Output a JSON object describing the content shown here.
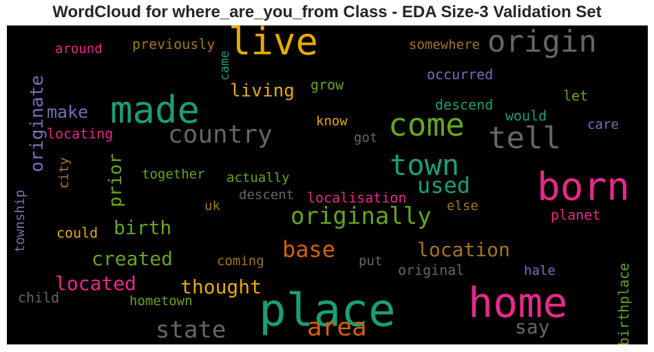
{
  "chart_data": {
    "type": "wordcloud",
    "title": "WordCloud for where_are_you_from Class - EDA Size-3 Validation Set",
    "background": "#000000",
    "palette": {
      "green": "#1b9e77",
      "orange": "#d95f02",
      "purple": "#7570b3",
      "pink": "#e7298a",
      "lime": "#66a61e",
      "gold": "#e6ab02",
      "brown": "#a6761d",
      "gray": "#666666"
    },
    "words": [
      {
        "text": "live",
        "color": "gold"
      },
      {
        "text": "origin",
        "color": "gray"
      },
      {
        "text": "previously",
        "color": "brown"
      },
      {
        "text": "somewhere",
        "color": "brown"
      },
      {
        "text": "around",
        "color": "pink"
      },
      {
        "text": "came",
        "color": "green"
      },
      {
        "text": "made",
        "color": "green"
      },
      {
        "text": "originate",
        "color": "purple"
      },
      {
        "text": "occurred",
        "color": "purple"
      },
      {
        "text": "living",
        "color": "gold"
      },
      {
        "text": "grow",
        "color": "lime"
      },
      {
        "text": "let",
        "color": "lime"
      },
      {
        "text": "make",
        "color": "purple"
      },
      {
        "text": "descend",
        "color": "green"
      },
      {
        "text": "would",
        "color": "green"
      },
      {
        "text": "come",
        "color": "lime"
      },
      {
        "text": "care",
        "color": "purple"
      },
      {
        "text": "know",
        "color": "gold"
      },
      {
        "text": "locating",
        "color": "pink"
      },
      {
        "text": "country",
        "color": "gray"
      },
      {
        "text": "tell",
        "color": "gray"
      },
      {
        "text": "got",
        "color": "gray"
      },
      {
        "text": "town",
        "color": "green"
      },
      {
        "text": "prior",
        "color": "lime"
      },
      {
        "text": "city",
        "color": "brown"
      },
      {
        "text": "born",
        "color": "pink"
      },
      {
        "text": "together",
        "color": "lime"
      },
      {
        "text": "actually",
        "color": "lime"
      },
      {
        "text": "used",
        "color": "green"
      },
      {
        "text": "township",
        "color": "purple"
      },
      {
        "text": "descent",
        "color": "gray"
      },
      {
        "text": "localisation",
        "color": "pink"
      },
      {
        "text": "uk",
        "color": "brown"
      },
      {
        "text": "else",
        "color": "brown"
      },
      {
        "text": "originally",
        "color": "lime"
      },
      {
        "text": "planet",
        "color": "pink"
      },
      {
        "text": "birth",
        "color": "lime"
      },
      {
        "text": "could",
        "color": "gold"
      },
      {
        "text": "base",
        "color": "orange"
      },
      {
        "text": "location",
        "color": "brown"
      },
      {
        "text": "created",
        "color": "lime"
      },
      {
        "text": "coming",
        "color": "brown"
      },
      {
        "text": "put",
        "color": "gray"
      },
      {
        "text": "original",
        "color": "gray"
      },
      {
        "text": "hale",
        "color": "purple"
      },
      {
        "text": "located",
        "color": "pink"
      },
      {
        "text": "thought",
        "color": "gold"
      },
      {
        "text": "child",
        "color": "gray"
      },
      {
        "text": "hometown",
        "color": "lime"
      },
      {
        "text": "place",
        "color": "green"
      },
      {
        "text": "home",
        "color": "pink"
      },
      {
        "text": "birthplace",
        "color": "lime"
      },
      {
        "text": "state",
        "color": "gray"
      },
      {
        "text": "area",
        "color": "orange"
      },
      {
        "text": "say",
        "color": "gray"
      }
    ]
  }
}
